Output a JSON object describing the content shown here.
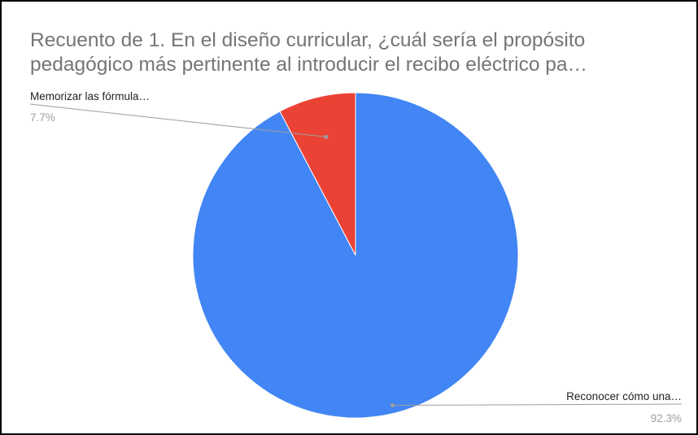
{
  "chart_data": {
    "type": "pie",
    "title_lines": [
      "Recuento de 1. En el diseño curricular, ¿cuál sería el propósito",
      "pedagógico más pertinente al introducir el recibo eléctrico pa…"
    ],
    "slices": [
      {
        "label": "Memorizar las fórmula…",
        "percent_label": "7.7%",
        "value": 7.7,
        "color": "#ea4335"
      },
      {
        "label": "Reconocer cómo una…",
        "percent_label": "92.3%",
        "value": 92.3,
        "color": "#4285f4"
      }
    ],
    "legend": "none",
    "label_placement": "outside-with-leader-lines"
  }
}
